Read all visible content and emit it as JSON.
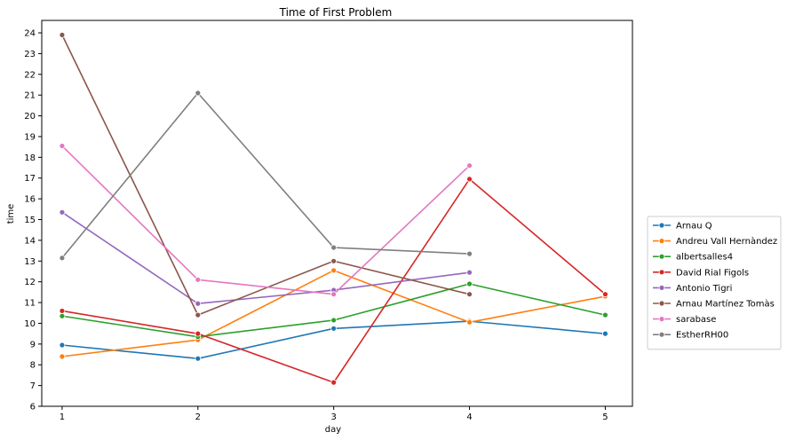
{
  "colors": {
    "background": "#ffffff",
    "axis": "#000000",
    "legend_border": "#cccccc"
  },
  "chart_data": {
    "type": "line",
    "title": "Time of First Problem",
    "xlabel": "day",
    "ylabel": "time",
    "xlim": [
      0.85,
      5.2
    ],
    "ylim": [
      6,
      24.6
    ],
    "xticks": [
      1,
      2,
      3,
      4,
      5
    ],
    "yticks": [
      6,
      7,
      8,
      9,
      10,
      11,
      12,
      13,
      14,
      15,
      16,
      17,
      18,
      19,
      20,
      21,
      22,
      23,
      24
    ],
    "grid": false,
    "legend_position": "center-right, outside plot area",
    "markers": "circle",
    "series": [
      {
        "name": "Arnau Q",
        "color": "#1f77b4",
        "x": [
          1,
          2,
          3,
          4,
          5
        ],
        "y": [
          8.95,
          8.3,
          9.75,
          10.1,
          9.5
        ]
      },
      {
        "name": "Andreu Vall Hernàndez",
        "color": "#ff7f0e",
        "x": [
          1,
          2,
          3,
          4,
          5
        ],
        "y": [
          8.4,
          9.2,
          12.55,
          10.05,
          11.3
        ]
      },
      {
        "name": "albertsalles4",
        "color": "#2ca02c",
        "x": [
          1,
          2,
          3,
          4,
          5
        ],
        "y": [
          10.35,
          9.35,
          10.15,
          11.9,
          10.4
        ]
      },
      {
        "name": "David Rial Figols",
        "color": "#d62728",
        "x": [
          1,
          2,
          3,
          4,
          5
        ],
        "y": [
          10.6,
          9.5,
          7.15,
          16.95,
          11.4
        ]
      },
      {
        "name": "Antonio Tigri",
        "color": "#9467bd",
        "x": [
          1,
          2,
          3,
          4
        ],
        "y": [
          15.35,
          10.95,
          11.6,
          12.45
        ]
      },
      {
        "name": "Arnau Martínez Tomàs",
        "color": "#8c564b",
        "x": [
          1,
          2,
          3,
          4
        ],
        "y": [
          23.9,
          10.4,
          13.0,
          11.4
        ]
      },
      {
        "name": "sarabase",
        "color": "#e377c2",
        "x": [
          1,
          2,
          3,
          4
        ],
        "y": [
          18.55,
          12.1,
          11.4,
          17.6
        ]
      },
      {
        "name": "EstherRH00",
        "color": "#7f7f7f",
        "x": [
          1,
          2,
          3,
          4
        ],
        "y": [
          13.15,
          21.1,
          13.65,
          13.35
        ]
      }
    ]
  }
}
